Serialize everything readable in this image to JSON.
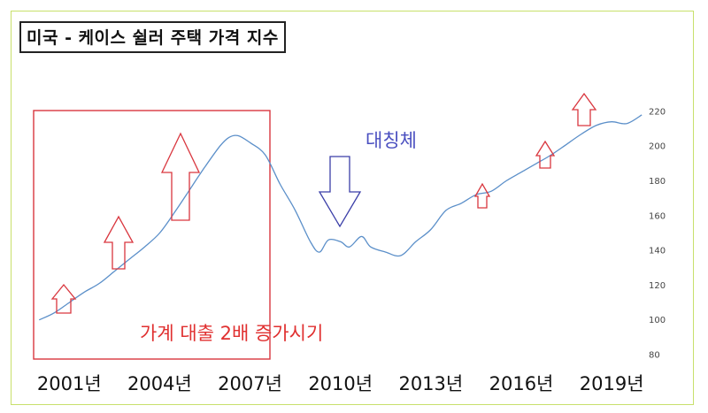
{
  "chart_data": {
    "type": "line",
    "title": "미국 - 케이스 쉴러 주택 가격 지수",
    "xlabel": "",
    "ylabel": "",
    "xlim": [
      1999.7,
      2020.2
    ],
    "ylim": [
      80,
      222
    ],
    "y_ticks": [
      80,
      100,
      120,
      140,
      160,
      180,
      200,
      220
    ],
    "x_ticks": [
      {
        "value": 2001,
        "label": "2001년"
      },
      {
        "value": 2004,
        "label": "2004년"
      },
      {
        "value": 2007,
        "label": "2007년"
      },
      {
        "value": 2010,
        "label": "2010년"
      },
      {
        "value": 2013,
        "label": "2013년"
      },
      {
        "value": 2016,
        "label": "2016년"
      },
      {
        "value": 2019,
        "label": "2019년"
      }
    ],
    "grid": false,
    "series": [
      {
        "color": "#5b8fc9",
        "x": [
          2000.0,
          2000.5,
          2001.0,
          2001.5,
          2002.0,
          2002.5,
          2003.0,
          2003.5,
          2004.0,
          2004.5,
          2005.0,
          2005.5,
          2006.0,
          2006.3,
          2006.6,
          2007.0,
          2007.5,
          2008.0,
          2008.5,
          2009.0,
          2009.3,
          2009.6,
          2010.0,
          2010.3,
          2010.7,
          2011.0,
          2011.5,
          2012.0,
          2012.5,
          2013.0,
          2013.5,
          2014.0,
          2014.5,
          2015.0,
          2015.5,
          2016.0,
          2016.5,
          2017.0,
          2017.5,
          2018.0,
          2018.5,
          2019.0,
          2019.5,
          2020.0
        ],
        "values": [
          100,
          104,
          110,
          116,
          121,
          128,
          135,
          142,
          150,
          162,
          175,
          188,
          200,
          205,
          206,
          202,
          195,
          178,
          163,
          145,
          139,
          146,
          145,
          142,
          148,
          142,
          139,
          137,
          145,
          152,
          163,
          167,
          172,
          174,
          180,
          185,
          190,
          195,
          201,
          207,
          212,
          214,
          213,
          218
        ]
      }
    ],
    "annotations": {
      "box_label": "가계 대출 2배 증가시기",
      "symmetry_label": "대칭체"
    }
  }
}
